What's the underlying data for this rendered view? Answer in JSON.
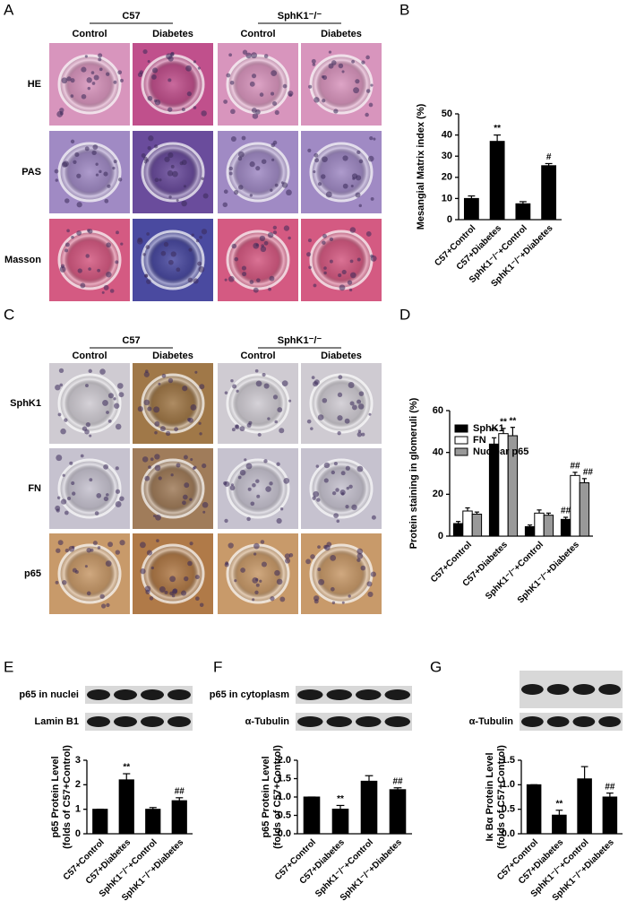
{
  "figure": {
    "panel_labels": [
      "A",
      "B",
      "C",
      "D",
      "E",
      "F",
      "G"
    ],
    "histology": [
      {
        "groups": [
          "C57",
          "SphK1⁻/⁻"
        ],
        "columns": [
          "Control",
          "Diabetes",
          "Control",
          "Diabetes"
        ],
        "rows": [
          "HE",
          "PAS",
          "Masson"
        ]
      },
      {
        "groups": [
          "C57",
          "SphK1⁻/⁻"
        ],
        "columns": [
          "Control",
          "Diabetes",
          "Control",
          "Diabetes"
        ],
        "rows": [
          "SphK1",
          "FN",
          "p65"
        ]
      }
    ],
    "blots": [
      {
        "rows": [
          "p65 in nuclei",
          "Lamin B1"
        ]
      },
      {
        "rows": [
          "p65 in cytoplasm",
          "α-Tubulin"
        ]
      },
      {
        "rows": [
          "α-Tubulin"
        ]
      }
    ]
  },
  "chart_data": [
    {
      "type": "bar",
      "y_label": "Mesangial Matrix index (%)",
      "categories": [
        "C57+Control",
        "C57+Diabetes",
        "SphK1⁻/⁻+Control",
        "SphK1⁻/⁻+Diabetes"
      ],
      "values": [
        10,
        37,
        7.5,
        25.5
      ],
      "errors": [
        1.2,
        3,
        1,
        1
      ],
      "annotations": [
        null,
        "**",
        null,
        "#"
      ],
      "color": "#000000",
      "ylim": [
        0,
        50
      ],
      "yticks": [
        0,
        10,
        20,
        30,
        40,
        50
      ]
    },
    {
      "type": "bar",
      "y_label": "Protein staining in glomeruli (%)",
      "categories": [
        "C57+Control",
        "C57+Diabetes",
        "SphK1⁻/⁻+Control",
        "SphK1⁻/⁻+Diabetes"
      ],
      "series": [
        {
          "name": "SphK1",
          "color": "#000000",
          "values": [
            6,
            44,
            4.5,
            8
          ],
          "errors": [
            1,
            3,
            0.8,
            1
          ],
          "annotations": [
            null,
            "**",
            null,
            "##"
          ]
        },
        {
          "name": "FN",
          "color": "#ffffff",
          "values": [
            12,
            49,
            11,
            29
          ],
          "errors": [
            1.5,
            2.5,
            1.5,
            1.5
          ],
          "annotations": [
            null,
            "**",
            null,
            "##"
          ]
        },
        {
          "name": "Nuclear p65",
          "color": "#999999",
          "values": [
            10.5,
            48,
            10,
            25.5
          ],
          "errors": [
            1,
            4,
            1,
            2
          ],
          "annotations": [
            null,
            "**",
            null,
            "##"
          ]
        }
      ],
      "legend": "upper left",
      "ylim": [
        0,
        60
      ],
      "yticks": [
        0,
        20,
        40,
        60
      ]
    },
    {
      "type": "bar",
      "y_label": [
        "p65 Protein Level",
        "(folds of C57+Control)"
      ],
      "categories": [
        "C57+Control",
        "C57+Diabetes",
        "SphK1⁻/⁻+Control",
        "SphK1⁻/⁻+Diabetes"
      ],
      "values": [
        1,
        2.2,
        1,
        1.35
      ],
      "errors": [
        0,
        0.25,
        0.07,
        0.12
      ],
      "annotations": [
        null,
        "**",
        null,
        "##"
      ],
      "color": "#000000",
      "ylim": [
        0,
        3
      ],
      "yticks": [
        0,
        1,
        2,
        3
      ]
    },
    {
      "type": "bar",
      "y_label": [
        "p65 Protein Level",
        "(folds of C57+Control)"
      ],
      "categories": [
        "C57+Control",
        "C57+Diabetes",
        "SphK1⁻/⁻+Control",
        "SphK1⁻/⁻+Diabetes"
      ],
      "values": [
        1,
        0.67,
        1.43,
        1.2
      ],
      "errors": [
        0,
        0.1,
        0.15,
        0.05
      ],
      "annotations": [
        null,
        "**",
        null,
        "##"
      ],
      "color": "#000000",
      "ylim": [
        0,
        2
      ],
      "yticks": [
        {
          "value": 0,
          "label": "0.0"
        },
        0.5,
        {
          "value": 1,
          "label": "1.0"
        },
        1.5,
        {
          "value": 2,
          "label": "2.0"
        }
      ]
    },
    {
      "type": "bar",
      "y_label": [
        "Iκ Bα Protein Level",
        "(folds of C57+Control)"
      ],
      "categories": [
        "C57+Control",
        "C57+Diabetes",
        "SphK1⁻/⁻+Control",
        "SphK1⁻/⁻+Diabetes"
      ],
      "values": [
        1,
        0.38,
        1.12,
        0.75
      ],
      "errors": [
        0,
        0.1,
        0.25,
        0.08
      ],
      "annotations": [
        null,
        "**",
        null,
        "##"
      ],
      "color": "#000000",
      "ylim": [
        0,
        1.5
      ],
      "yticks": [
        {
          "value": 0,
          "label": "0.0"
        },
        0.5,
        {
          "value": 1,
          "label": "1.0"
        },
        1.5
      ]
    }
  ]
}
